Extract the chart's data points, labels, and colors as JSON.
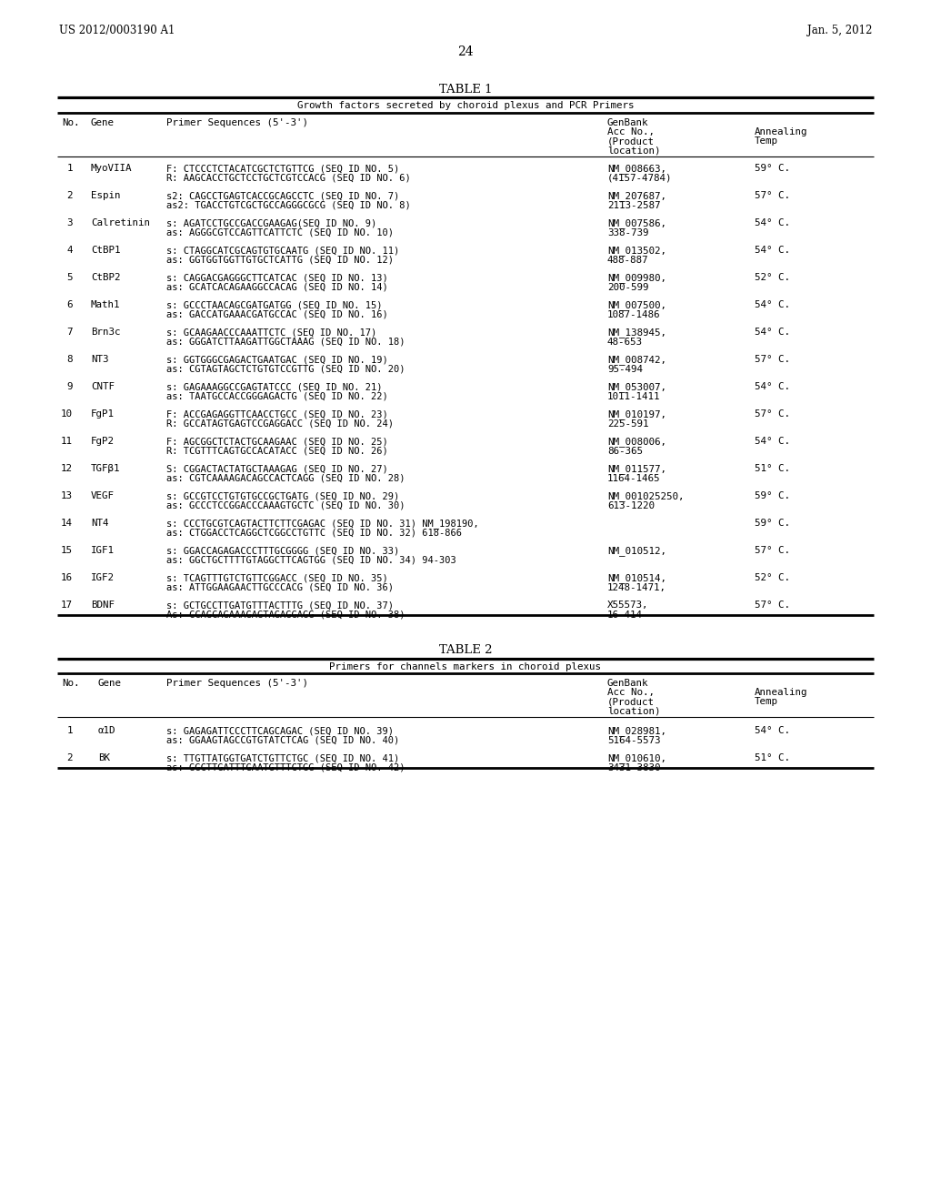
{
  "page_header_left": "US 2012/0003190 A1",
  "page_header_right": "Jan. 5, 2012",
  "page_number": "24",
  "table1_title": "TABLE 1",
  "table1_subtitle": "Growth factors secreted by choroid plexus and PCR Primers",
  "table1_rows": [
    [
      "1",
      "MyoVIIA",
      "F: CTCCCTCTACATCGCTCTGTTCG (SEQ ID NO. 5)\nR: AAGCACCTGCTCCTGCTCGTCCACG (SEQ ID NO. 6)",
      "NM_008663,\n(4157-4784)",
      "59° C."
    ],
    [
      "2",
      "Espin",
      "s2: CAGCCTGAGTCACCGCAGCCTC (SEQ ID NO. 7)\nas2: TGACCTGTCGCTGCCAGGGCGCG (SEQ ID NO. 8)",
      "NM_207687,\n2113-2587",
      "57° C."
    ],
    [
      "3",
      "Calretinin",
      "s: AGATCCTGCCGACCGAAGAG(SEQ ID NO. 9)\nas: AGGGCGTCCAGTTCATTCTC (SEQ ID NO. 10)",
      "NM_007586,\n338-739",
      "54° C."
    ],
    [
      "4",
      "CtBP1",
      "s: CTAGGCATCGCAGTGTGCAATG (SEQ ID NO. 11)\nas: GGTGGTGGTTGTGCTCATTG (SEQ ID NO. 12)",
      "NM_013502,\n488-887",
      "54° C."
    ],
    [
      "5",
      "CtBP2",
      "s: CAGGACGAGGGCTTCATCAC (SEQ ID NO. 13)\nas: GCATCACAGAAGGCCACAG (SEQ ID NO. 14)",
      "NM_009980,\n200-599",
      "52° C."
    ],
    [
      "6",
      "Math1",
      "s: GCCCTAACAGCGATGATGG (SEQ ID NO. 15)\nas: GACCATGAAACGATGCCAC (SEQ ID NO. 16)",
      "NM_007500,\n1087-1486",
      "54° C."
    ],
    [
      "7",
      "Brn3c",
      "s: GCAAGAACCCAAATTCTC (SEQ ID NO. 17)\nas: GGGATCTTAAGATTGGCTAAAG (SEQ ID NO. 18)",
      "NM_138945,\n48-653",
      "54° C."
    ],
    [
      "8",
      "NT3",
      "s: GGTGGGCGAGACTGAATGAC (SEQ ID NO. 19)\nas: CGTAGTAGCTCTGTGTCCGTTG (SEQ ID NO. 20)",
      "NM_008742,\n95-494",
      "57° C."
    ],
    [
      "9",
      "CNTF",
      "s: GAGAAAGGCCGAGTATCCC (SEQ ID NO. 21)\nas: TAATGCCACCGGGAGACTG (SEQ ID NO. 22)",
      "NM_053007,\n1011-1411",
      "54° C."
    ],
    [
      "10",
      "FgP1",
      "F: ACCGAGAGGTTCAACCTGCC (SEQ ID NO. 23)\nR: GCCATAGTGAGTCCGAGGACC (SEQ ID NO. 24)",
      "NM_010197,\n225-591",
      "57° C."
    ],
    [
      "11",
      "FgP2",
      "F: AGCGGCTCTACTGCAAGAAC (SEQ ID NO. 25)\nR: TCGTTTCAGTGCCACATACC (SEQ ID NO. 26)",
      "NM_008006,\n86-365",
      "54° C."
    ],
    [
      "12",
      "TGFβ1",
      "S: CGGACTACTATGCTAAAGAG (SEQ ID NO. 27)\nas: CGTCAAAAGACAGCCACTCAGG (SEQ ID NO. 28)",
      "NM_011577,\n1164-1465",
      "51° C."
    ],
    [
      "13",
      "VEGF",
      "s: GCCGTCCTGTGTGCCGCTGATG (SEQ ID NO. 29)\nas: GCCCTCCGGACCCAAAGTGCTC (SEQ ID NO. 30)",
      "NM_001025250,\n613-1220",
      "59° C."
    ],
    [
      "14",
      "NT4",
      "s: CCCTGCGTCAGTACTTCTTCGAGAC (SEQ ID NO. 31) NM_198190,\nas: CTGGACCTCAGGCTCGGCCTGTTC (SEQ ID NO. 32) 618-866",
      "",
      "59° C."
    ],
    [
      "15",
      "IGF1",
      "s: GGACCAGAGACCCTTTGCGGGG (SEQ ID NO. 33)\nas: GGCTGCTTTTGTAGGCTTCAGTGG (SEQ ID NO. 34) 94-303",
      "NM_010512,\n",
      "57° C."
    ],
    [
      "16",
      "IGF2",
      "s: TCAGTTTGTCTGTTCGGACC (SEQ ID NO. 35)\nas: ATTGGAAGAACTTGCCCACG (SEQ ID NO. 36)",
      "NM_010514,\n1248-1471,",
      "52° C."
    ],
    [
      "17",
      "BDNF",
      "s: GCTGCCTTGATGTTTACTTTG (SEQ ID NO. 37)\nAs: CCAGCAGAAAGAGTAGAGGAGG (SEQ ID NO. 38)",
      "X55573,\n16-414",
      "57° C."
    ]
  ],
  "table2_title": "TABLE 2",
  "table2_subtitle": "Primers for channels markers in choroid plexus",
  "table2_rows": [
    [
      "1",
      "α1D",
      "s: GAGAGATTCCCTTCAGCAGAC (SEQ ID NO. 39)\nas: GGAAGTAGCCGTGTATCTCAG (SEQ ID NO. 40)",
      "NM_028981,\n5164-5573",
      "54° C."
    ],
    [
      "2",
      "BK",
      "s: TTGTTATGGTGATCTGTTCTGC (SEQ ID NO. 41)\nas: GGCTTGATTTGAATGTTTCTGG (SEQ ID NO. 42)",
      "NM_010610,\n3431-3830",
      "51° C."
    ]
  ],
  "bg_color": "#ffffff"
}
